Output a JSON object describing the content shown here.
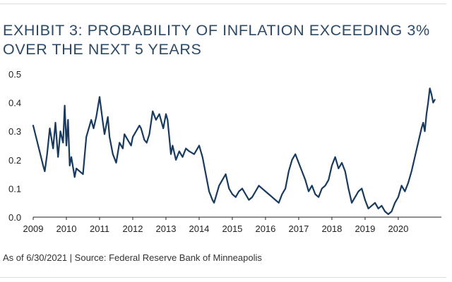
{
  "title": "EXHIBIT 3: PROBABILITY OF INFLATION EXCEEDING 3% OVER THE NEXT 5 YEARS",
  "source": "As of 6/30/2021 | Source: Federal Reserve Bank of Minneapolis",
  "colors": {
    "line": "#173a5e",
    "axis": "#222222",
    "title": "#2c4a66"
  },
  "chart_data": {
    "type": "line",
    "title": "EXHIBIT 3: PROBABILITY OF INFLATION EXCEEDING 3% OVER THE NEXT 5 YEARS",
    "xlabel": "",
    "ylabel": "",
    "xlim": [
      2009,
      2021.3
    ],
    "ylim": [
      0,
      0.5
    ],
    "x_ticks": [
      2009,
      2010,
      2011,
      2012,
      2013,
      2014,
      2015,
      2016,
      2017,
      2018,
      2019,
      2020
    ],
    "y_ticks": [
      0.0,
      0.1,
      0.2,
      0.3,
      0.4,
      0.5
    ],
    "y_tick_labels": [
      "0.0",
      "0.1",
      "0.2",
      "0.3",
      "0.4",
      "0.5"
    ],
    "grid": false,
    "legend": "none",
    "series": [
      {
        "x": [
          2009.0,
          2009.3,
          2009.35,
          2009.42,
          2009.5,
          2009.6,
          2009.67,
          2009.75,
          2009.82,
          2009.9,
          2009.95,
          2010.0,
          2010.05,
          2010.1,
          2010.15,
          2010.25,
          2010.3,
          2010.5,
          2010.6,
          2010.75,
          2010.82,
          2010.9,
          2011.0,
          2011.1,
          2011.15,
          2011.25,
          2011.3,
          2011.4,
          2011.5,
          2011.6,
          2011.7,
          2011.75,
          2011.85,
          2011.95,
          2012.0,
          2012.2,
          2012.25,
          2012.35,
          2012.42,
          2012.5,
          2012.6,
          2012.7,
          2012.8,
          2012.92,
          2013.0,
          2013.05,
          2013.15,
          2013.2,
          2013.3,
          2013.4,
          2013.5,
          2013.6,
          2013.7,
          2013.85,
          2014.0,
          2014.1,
          2014.2,
          2014.3,
          2014.4,
          2014.45,
          2014.5,
          2014.6,
          2014.7,
          2014.8,
          2014.9,
          2015.0,
          2015.1,
          2015.2,
          2015.3,
          2015.4,
          2015.5,
          2015.6,
          2015.7,
          2015.8,
          2015.9,
          2016.0,
          2016.1,
          2016.2,
          2016.3,
          2016.4,
          2016.5,
          2016.6,
          2016.7,
          2016.8,
          2016.9,
          2017.0,
          2017.1,
          2017.2,
          2017.3,
          2017.4,
          2017.5,
          2017.6,
          2017.7,
          2017.8,
          2017.9,
          2018.0,
          2018.1,
          2018.2,
          2018.3,
          2018.4,
          2018.5,
          2018.6,
          2018.7,
          2018.8,
          2018.9,
          2019.0,
          2019.1,
          2019.2,
          2019.3,
          2019.4,
          2019.5,
          2019.6,
          2019.7,
          2019.8,
          2019.9,
          2020.0,
          2020.1,
          2020.2,
          2020.3,
          2020.4,
          2020.5,
          2020.6,
          2020.7,
          2020.75,
          2020.8,
          2020.85,
          2020.9,
          2020.95,
          2021.0,
          2021.05,
          2021.1
        ],
        "y": [
          0.32,
          0.18,
          0.16,
          0.22,
          0.31,
          0.24,
          0.33,
          0.21,
          0.3,
          0.26,
          0.39,
          0.25,
          0.34,
          0.18,
          0.21,
          0.14,
          0.17,
          0.15,
          0.28,
          0.34,
          0.31,
          0.35,
          0.42,
          0.33,
          0.29,
          0.35,
          0.28,
          0.22,
          0.19,
          0.26,
          0.24,
          0.29,
          0.27,
          0.25,
          0.28,
          0.32,
          0.31,
          0.27,
          0.26,
          0.29,
          0.37,
          0.34,
          0.36,
          0.31,
          0.36,
          0.34,
          0.22,
          0.25,
          0.2,
          0.23,
          0.21,
          0.24,
          0.23,
          0.22,
          0.25,
          0.21,
          0.15,
          0.09,
          0.06,
          0.05,
          0.07,
          0.11,
          0.13,
          0.15,
          0.1,
          0.08,
          0.07,
          0.09,
          0.1,
          0.08,
          0.06,
          0.07,
          0.09,
          0.11,
          0.1,
          0.09,
          0.08,
          0.07,
          0.06,
          0.05,
          0.08,
          0.1,
          0.16,
          0.2,
          0.22,
          0.19,
          0.16,
          0.13,
          0.09,
          0.11,
          0.08,
          0.07,
          0.1,
          0.11,
          0.13,
          0.18,
          0.21,
          0.17,
          0.19,
          0.16,
          0.1,
          0.05,
          0.07,
          0.09,
          0.1,
          0.06,
          0.03,
          0.04,
          0.05,
          0.03,
          0.04,
          0.02,
          0.01,
          0.02,
          0.05,
          0.07,
          0.11,
          0.09,
          0.12,
          0.16,
          0.21,
          0.26,
          0.31,
          0.33,
          0.3,
          0.36,
          0.4,
          0.45,
          0.43,
          0.4,
          0.41
        ]
      }
    ]
  }
}
